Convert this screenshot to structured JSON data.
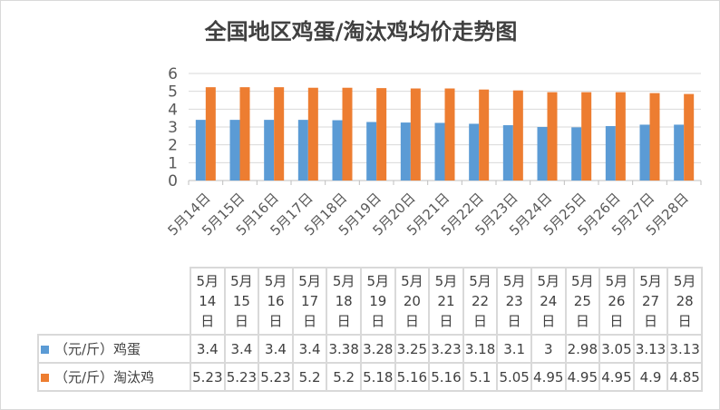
{
  "chart_data": {
    "type": "bar",
    "title": "全国地区鸡蛋/淘汰鸡均价走势图",
    "categories": [
      "5月14日",
      "5月15日",
      "5月16日",
      "5月17日",
      "5月18日",
      "5月19日",
      "5月20日",
      "5月21日",
      "5月22日",
      "5月23日",
      "5月24日",
      "5月25日",
      "5月26日",
      "5月27日",
      "5月28日"
    ],
    "header_parts": [
      [
        "5月",
        "14",
        "日"
      ],
      [
        "5月",
        "15",
        "日"
      ],
      [
        "5月",
        "16",
        "日"
      ],
      [
        "5月",
        "17",
        "日"
      ],
      [
        "5月",
        "18",
        "日"
      ],
      [
        "5月",
        "19",
        "日"
      ],
      [
        "5月",
        "20",
        "日"
      ],
      [
        "5月",
        "21",
        "日"
      ],
      [
        "5月",
        "22",
        "日"
      ],
      [
        "5月",
        "23",
        "日"
      ],
      [
        "5月",
        "24",
        "日"
      ],
      [
        "5月",
        "25",
        "日"
      ],
      [
        "5月",
        "26",
        "日"
      ],
      [
        "5月",
        "27",
        "日"
      ],
      [
        "5月",
        "28",
        "日"
      ]
    ],
    "series": [
      {
        "name": "（元/斤）鸡蛋",
        "color": "#5b9bd5",
        "values": [
          "3.4",
          "3.4",
          "3.4",
          "3.4",
          "3.38",
          "3.28",
          "3.25",
          "3.23",
          "3.18",
          "3.1",
          "3",
          "2.98",
          "3.05",
          "3.13",
          "3.13"
        ]
      },
      {
        "name": "（元/斤）淘汰鸡",
        "color": "#ed7d31",
        "values": [
          "5.23",
          "5.23",
          "5.23",
          "5.2",
          "5.2",
          "5.18",
          "5.16",
          "5.16",
          "5.1",
          "5.05",
          "4.95",
          "4.95",
          "4.95",
          "4.9",
          "4.85"
        ]
      }
    ],
    "ylim": [
      0,
      6
    ],
    "yticks": [
      "0",
      "1",
      "2",
      "3",
      "4",
      "5",
      "6"
    ],
    "grid": true,
    "legend": "data-table"
  }
}
